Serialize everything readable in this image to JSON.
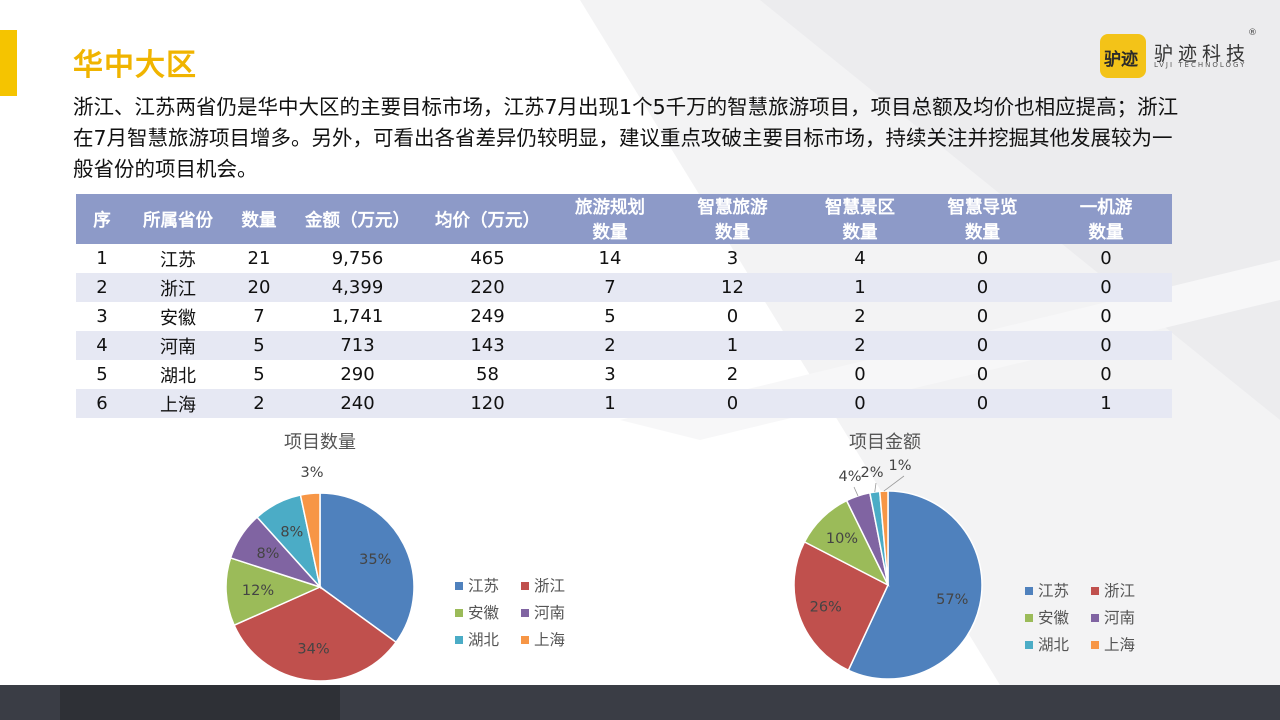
{
  "title": "华中大区",
  "summary": "浙江、江苏两省仍是华中大区的主要目标市场，江苏7月出现1个5千万的智慧旅游项目，项目总额及均价也相应提高；浙江在7月智慧旅游项目增多。另外，可看出各省差异仍较明显，建议重点攻破主要目标市场，持续关注并挖掘其他发展较为一般省份的项目机会。",
  "logo": {
    "mark_text": "驴迹",
    "name_cn": "驴迹科技",
    "name_en": "LVJI TECHNOLOGY",
    "registered": "®",
    "color": "#f3c318"
  },
  "colors": {
    "accent": "#f5c400",
    "title": "#f0b400",
    "header_bg": "#8d9ac8",
    "highlight": "#e01010"
  },
  "table": {
    "headers": [
      "序",
      "所属省份",
      "数量",
      "金额（万元）",
      "均价（万元）"
    ],
    "group_headers": [
      "旅游规划",
      "智慧旅游",
      "智慧景区",
      "智慧导览",
      "一机游"
    ],
    "sub_header": "数量",
    "rows": [
      [
        "1",
        "江苏",
        "21",
        "9,756",
        "465",
        "14",
        "3",
        "4",
        "0",
        "0"
      ],
      [
        "2",
        "浙江",
        "20",
        "4,399",
        "220",
        "7",
        "12",
        "1",
        "0",
        "0"
      ],
      [
        "3",
        "安徽",
        "7",
        "1,741",
        "249",
        "5",
        "0",
        "2",
        "0",
        "0"
      ],
      [
        "4",
        "河南",
        "5",
        "713",
        "143",
        "2",
        "1",
        "2",
        "0",
        "0"
      ],
      [
        "5",
        "湖北",
        "5",
        "290",
        "58",
        "3",
        "2",
        "0",
        "0",
        "0"
      ],
      [
        "6",
        "上海",
        "2",
        "240",
        "120",
        "1",
        "0",
        "0",
        "0",
        "1"
      ]
    ]
  },
  "chart_data": [
    {
      "type": "pie",
      "title": "项目数量",
      "categories": [
        "江苏",
        "浙江",
        "安徽",
        "河南",
        "湖北",
        "上海"
      ],
      "values": [
        21,
        20,
        7,
        5,
        5,
        2
      ],
      "labels": [
        "35%",
        "34%",
        "12%",
        "8%",
        "8%",
        "3%"
      ],
      "colors": [
        "#4f81bd",
        "#c0504d",
        "#9bbb59",
        "#8064a2",
        "#4bacc6",
        "#f79646"
      ],
      "legend_position": "right"
    },
    {
      "type": "pie",
      "title": "项目金额",
      "categories": [
        "江苏",
        "浙江",
        "安徽",
        "河南",
        "湖北",
        "上海"
      ],
      "values": [
        9756,
        4399,
        1741,
        713,
        290,
        240
      ],
      "labels": [
        "57%",
        "26%",
        "10%",
        "4%",
        "2%",
        "1%"
      ],
      "colors": [
        "#4f81bd",
        "#c0504d",
        "#9bbb59",
        "#8064a2",
        "#4bacc6",
        "#f79646"
      ],
      "legend_position": "right"
    }
  ]
}
